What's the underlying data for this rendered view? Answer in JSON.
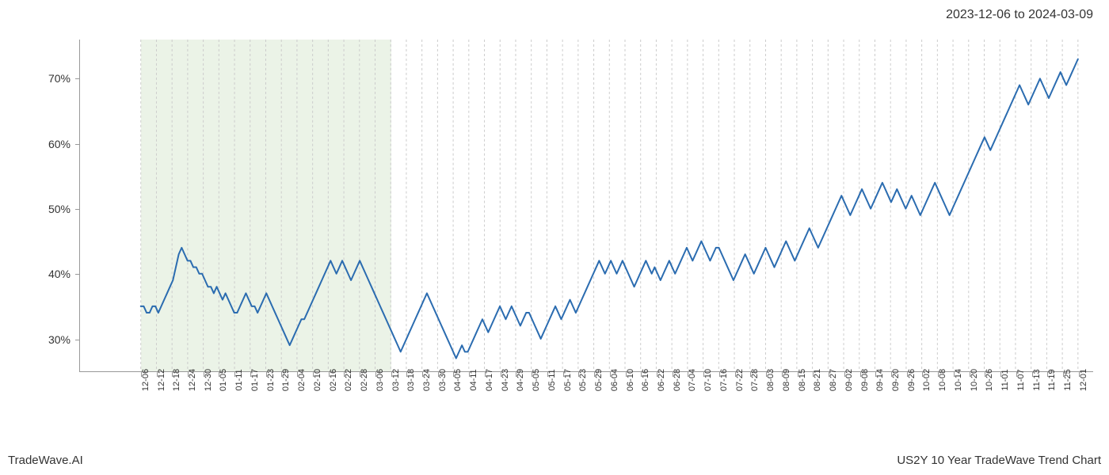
{
  "header": {
    "date_range": "2023-12-06 to 2024-03-09"
  },
  "footer": {
    "brand": "TradeWave.AI",
    "title": "US2Y 10 Year TradeWave Trend Chart"
  },
  "chart": {
    "type": "line",
    "background_color": "#ffffff",
    "line_color": "#2b6cb0",
    "line_width": 2,
    "grid_color": "#cccccc",
    "axis_color": "#999999",
    "text_color": "#333333",
    "highlight_region": {
      "start_index": 0,
      "end_index": 16,
      "fill_color": "#d8e8d0",
      "opacity": 0.5
    },
    "y_axis": {
      "min": 25,
      "max": 76,
      "ticks": [
        30,
        40,
        50,
        60,
        70
      ],
      "tick_labels": [
        "30%",
        "40%",
        "50%",
        "60%",
        "70%"
      ],
      "label_fontsize": 14
    },
    "x_axis": {
      "tick_labels": [
        "12-06",
        "12-12",
        "12-18",
        "12-24",
        "12-30",
        "01-05",
        "01-11",
        "01-17",
        "01-23",
        "01-29",
        "02-04",
        "02-10",
        "02-16",
        "02-22",
        "02-28",
        "03-06",
        "03-12",
        "03-18",
        "03-24",
        "03-30",
        "04-05",
        "04-11",
        "04-17",
        "04-23",
        "04-29",
        "05-05",
        "05-11",
        "05-17",
        "05-23",
        "05-29",
        "06-04",
        "06-10",
        "06-16",
        "06-22",
        "06-28",
        "07-04",
        "07-10",
        "07-16",
        "07-22",
        "07-28",
        "08-03",
        "08-09",
        "08-15",
        "08-21",
        "08-27",
        "09-02",
        "09-08",
        "09-14",
        "09-20",
        "09-26",
        "10-02",
        "10-08",
        "10-14",
        "10-20",
        "10-26",
        "11-01",
        "11-07",
        "11-13",
        "11-19",
        "11-25",
        "12-01"
      ],
      "label_fontsize": 11,
      "rotation": -90
    },
    "series": {
      "values": [
        35,
        35,
        34,
        34,
        35,
        35,
        34,
        35,
        36,
        37,
        38,
        39,
        41,
        43,
        44,
        43,
        42,
        42,
        41,
        41,
        40,
        40,
        39,
        38,
        38,
        37,
        38,
        37,
        36,
        37,
        36,
        35,
        34,
        34,
        35,
        36,
        37,
        36,
        35,
        35,
        34,
        35,
        36,
        37,
        36,
        35,
        34,
        33,
        32,
        31,
        30,
        29,
        30,
        31,
        32,
        33,
        33,
        34,
        35,
        36,
        37,
        38,
        39,
        40,
        41,
        42,
        41,
        40,
        41,
        42,
        41,
        40,
        39,
        40,
        41,
        42,
        41,
        40,
        39,
        38,
        37,
        36,
        35,
        34,
        33,
        32,
        31,
        30,
        29,
        28,
        29,
        30,
        31,
        32,
        33,
        34,
        35,
        36,
        37,
        36,
        35,
        34,
        33,
        32,
        31,
        30,
        29,
        28,
        27,
        28,
        29,
        28,
        28,
        29,
        30,
        31,
        32,
        33,
        32,
        31,
        32,
        33,
        34,
        35,
        34,
        33,
        34,
        35,
        34,
        33,
        32,
        33,
        34,
        34,
        33,
        32,
        31,
        30,
        31,
        32,
        33,
        34,
        35,
        34,
        33,
        34,
        35,
        36,
        35,
        34,
        35,
        36,
        37,
        38,
        39,
        40,
        41,
        42,
        41,
        40,
        41,
        42,
        41,
        40,
        41,
        42,
        41,
        40,
        39,
        38,
        39,
        40,
        41,
        42,
        41,
        40,
        41,
        40,
        39,
        40,
        41,
        42,
        41,
        40,
        41,
        42,
        43,
        44,
        43,
        42,
        43,
        44,
        45,
        44,
        43,
        42,
        43,
        44,
        44,
        43,
        42,
        41,
        40,
        39,
        40,
        41,
        42,
        43,
        42,
        41,
        40,
        41,
        42,
        43,
        44,
        43,
        42,
        41,
        42,
        43,
        44,
        45,
        44,
        43,
        42,
        43,
        44,
        45,
        46,
        47,
        46,
        45,
        44,
        45,
        46,
        47,
        48,
        49,
        50,
        51,
        52,
        51,
        50,
        49,
        50,
        51,
        52,
        53,
        52,
        51,
        50,
        51,
        52,
        53,
        54,
        53,
        52,
        51,
        52,
        53,
        52,
        51,
        50,
        51,
        52,
        51,
        50,
        49,
        50,
        51,
        52,
        53,
        54,
        53,
        52,
        51,
        50,
        49,
        50,
        51,
        52,
        53,
        54,
        55,
        56,
        57,
        58,
        59,
        60,
        61,
        60,
        59,
        60,
        61,
        62,
        63,
        64,
        65,
        66,
        67,
        68,
        69,
        68,
        67,
        66,
        67,
        68,
        69,
        70,
        69,
        68,
        67,
        68,
        69,
        70,
        71,
        70,
        69,
        70,
        71,
        72,
        73
      ]
    }
  }
}
